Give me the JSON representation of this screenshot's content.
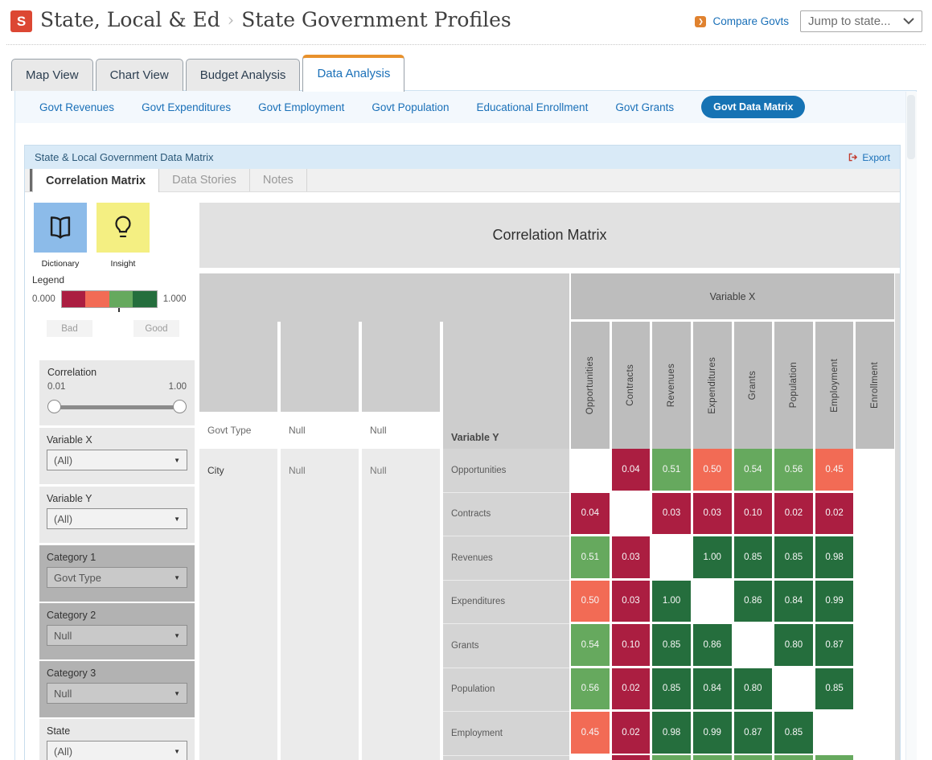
{
  "header": {
    "logo_text": "S",
    "breadcrumb_section": "State, Local & Ed",
    "breadcrumb_separator": "›",
    "breadcrumb_page": "State Government Profiles",
    "compare_govts_label": "Compare Govts",
    "jump_to_state_placeholder": "Jump to state..."
  },
  "main_tabs": {
    "items": [
      {
        "label": "Map View",
        "active": false
      },
      {
        "label": "Chart View",
        "active": false
      },
      {
        "label": "Budget Analysis",
        "active": false
      },
      {
        "label": "Data Analysis",
        "active": true
      }
    ]
  },
  "subnav": {
    "items": [
      {
        "label": "Govt Revenues",
        "active": false
      },
      {
        "label": "Govt Expenditures",
        "active": false
      },
      {
        "label": "Govt Employment",
        "active": false
      },
      {
        "label": "Govt Population",
        "active": false
      },
      {
        "label": "Educational Enrollment",
        "active": false
      },
      {
        "label": "Govt Grants",
        "active": false
      },
      {
        "label": "Govt Data Matrix",
        "active": true
      }
    ]
  },
  "panel": {
    "title": "State & Local Government Data Matrix",
    "export_label": "Export",
    "tabs": [
      {
        "label": "Correlation Matrix",
        "active": true
      },
      {
        "label": "Data Stories",
        "active": false
      },
      {
        "label": "Notes",
        "active": false
      }
    ]
  },
  "sidebar": {
    "tools": [
      {
        "label": "Dictionary",
        "tile_color": "#8CBBE9"
      },
      {
        "label": "Insight",
        "tile_color": "#F4EF82"
      }
    ],
    "legend": {
      "label": "Legend",
      "min": "0.000",
      "max": "1.000",
      "bad_label": "Bad",
      "good_label": "Good"
    },
    "correlation": {
      "label": "Correlation",
      "min": "0.01",
      "max": "1.00"
    },
    "filters": [
      {
        "label": "Variable X",
        "value": "(All)",
        "tone": "light"
      },
      {
        "label": "Variable Y",
        "value": "(All)",
        "tone": "light"
      },
      {
        "label": "Category 1",
        "value": "Govt Type",
        "tone": "dark"
      },
      {
        "label": "Category 2",
        "value": "Null",
        "tone": "dark"
      },
      {
        "label": "Category 3",
        "value": "Null",
        "tone": "dark"
      },
      {
        "label": "State",
        "value": "(All)",
        "tone": "light"
      }
    ]
  },
  "chart_data": {
    "type": "heatmap",
    "title": "Correlation Matrix",
    "x_header": "Variable X",
    "y_header": "Variable Y",
    "group_columns": [
      {
        "header": "Govt Type",
        "value": "City"
      },
      {
        "header": "Null",
        "value": "Null"
      },
      {
        "header": "Null",
        "value": "Null"
      }
    ],
    "columns": [
      "Opportunities",
      "Contracts",
      "Revenues",
      "Expenditures",
      "Grants",
      "Population",
      "Employment",
      "Enrollment"
    ],
    "rows": [
      "Opportunities",
      "Contracts",
      "Revenues",
      "Expenditures",
      "Grants",
      "Population",
      "Employment"
    ],
    "values": [
      [
        null,
        0.04,
        0.51,
        0.5,
        0.54,
        0.56,
        0.45,
        null
      ],
      [
        0.04,
        null,
        0.03,
        0.03,
        0.1,
        0.02,
        0.02,
        null
      ],
      [
        0.51,
        0.03,
        null,
        1.0,
        0.85,
        0.85,
        0.98,
        null
      ],
      [
        0.5,
        0.03,
        1.0,
        null,
        0.86,
        0.84,
        0.99,
        null
      ],
      [
        0.54,
        0.1,
        0.85,
        0.86,
        null,
        0.8,
        0.87,
        null
      ],
      [
        0.56,
        0.02,
        0.85,
        0.84,
        0.8,
        null,
        0.85,
        null
      ],
      [
        0.45,
        0.02,
        0.98,
        0.99,
        0.87,
        0.85,
        null,
        null
      ]
    ],
    "partial_row_colors": [
      null,
      "c0",
      "c2",
      "c2",
      "c2",
      "c2",
      "c2",
      null
    ],
    "color_scale": {
      "colors": [
        "#AB1E41",
        "#F26B55",
        "#66A95E",
        "#256E3D"
      ],
      "thresholds": [
        0.25,
        0.505,
        0.755
      ],
      "legend_min": 0,
      "legend_max": 1
    }
  }
}
